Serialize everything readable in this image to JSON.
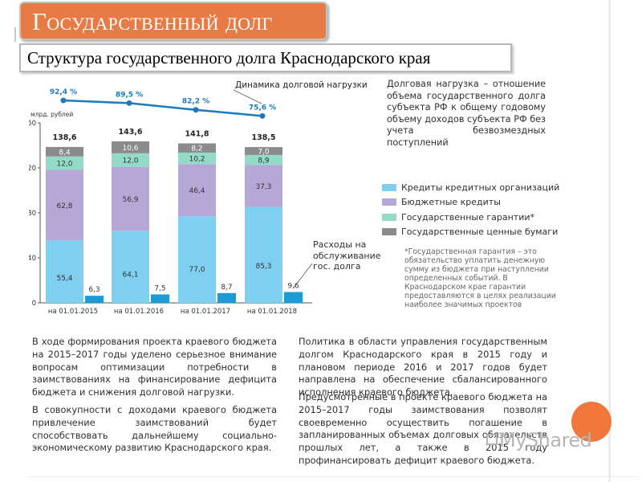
{
  "slide": {
    "title": "Государственный долг",
    "subtitle": "Структура государственного долга Краснодарского края"
  },
  "colors": {
    "title_bg": "#e77b46",
    "credit_orgs": "#7fcff0",
    "budget_credits": "#b7a7d7",
    "guarantees": "#94dac9",
    "securities": "#8b8b8b",
    "expenses": "#1c9bd5",
    "load_line": "#1d7bbd",
    "accent_circle": "#f0783c"
  },
  "chart_data": {
    "type": "bar",
    "stacked": true,
    "categories": [
      "на 01.01.2015",
      "на 01.01.2016",
      "на 01.01.2017",
      "на 01.01.2018"
    ],
    "ylabel": "млрд. рублей",
    "ylim": [
      0,
      160
    ],
    "yticks": [
      "0",
      "40",
      "80",
      "120",
      "160"
    ],
    "series": [
      {
        "name": "Кредиты кредитных организаций",
        "values": [
          55.4,
          64.1,
          77.0,
          85.3
        ],
        "labels": [
          "55,4",
          "64,1",
          "77,0",
          "85,3"
        ]
      },
      {
        "name": "Бюджетные кредиты",
        "values": [
          62.8,
          56.9,
          46.4,
          37.3
        ],
        "labels": [
          "62,8",
          "56,9",
          "46,4",
          "37,3"
        ]
      },
      {
        "name": "Государственные гарантии*",
        "values": [
          12.0,
          12.0,
          10.2,
          8.9
        ],
        "labels": [
          "12,0",
          "12,0",
          "10,2",
          "8,9"
        ]
      },
      {
        "name": "Государственные ценные бумаги",
        "values": [
          8.4,
          10.6,
          8.2,
          7.0
        ],
        "labels": [
          "8,4",
          "10,6",
          "8,2",
          "7,0"
        ]
      }
    ],
    "totals": [
      "138,6",
      "143,6",
      "141,8",
      "138,5"
    ],
    "expenses": {
      "name": "Расходы на обслуживание гос. долга",
      "values": [
        6.3,
        7.5,
        8.7,
        9.6
      ],
      "labels": [
        "6,3",
        "7,5",
        "8,7",
        "9,6"
      ]
    },
    "debt_load": {
      "name": "Динамика долговой нагрузки",
      "values": [
        92.4,
        89.5,
        82.2,
        75.6
      ],
      "labels": [
        "92,4 %",
        "89,5 %",
        "82,2 %",
        "75,6 %"
      ]
    }
  },
  "text": {
    "definition": "Долговая нагрузка – отношение объема государственного долга субъекта РФ к общему годовому объему доходов субъекта РФ без учета безвозмездных поступлений",
    "expense_label": "Расходы на обслуживание гос. долга",
    "footnote": "*Государственная гарантия – это обязательство уплатить денежную сумму из бюджета при наступлении определенных событий. В Краснодарском крае гарантии предоставляются в целях реализации наиболее значимых проектов",
    "left_p1": "В ходе формирования проекта краевого бюджета на 2015–2017 годы уделено серьезное внимание вопросам оптимизации потребности в заимствованиях на финансирование дефицита бюджета и снижения долговой нагрузки.",
    "left_p2": "В совокупности с доходами краевого бюджета привлечение заимствований будет способствовать дальнейшему социально-экономическому развитию Краснодарского края.",
    "right_p1": "Политика в области управления государственным долгом Краснодарского края в 2015 году и плановом периоде 2016 и 2017 годов будет направлена на обеспечение сбалансированного исполнения краевого бюджета.",
    "right_p2": "Предусмотренные в проекте краевого бюджета на 2015–2017 годы заимствования позволят своевременно осуществить погашение в запланированных объемах долговых обязательств прошлых лет, а также в 2015 году профинансировать дефицит краевого бюджета."
  },
  "watermark": "MyShared"
}
